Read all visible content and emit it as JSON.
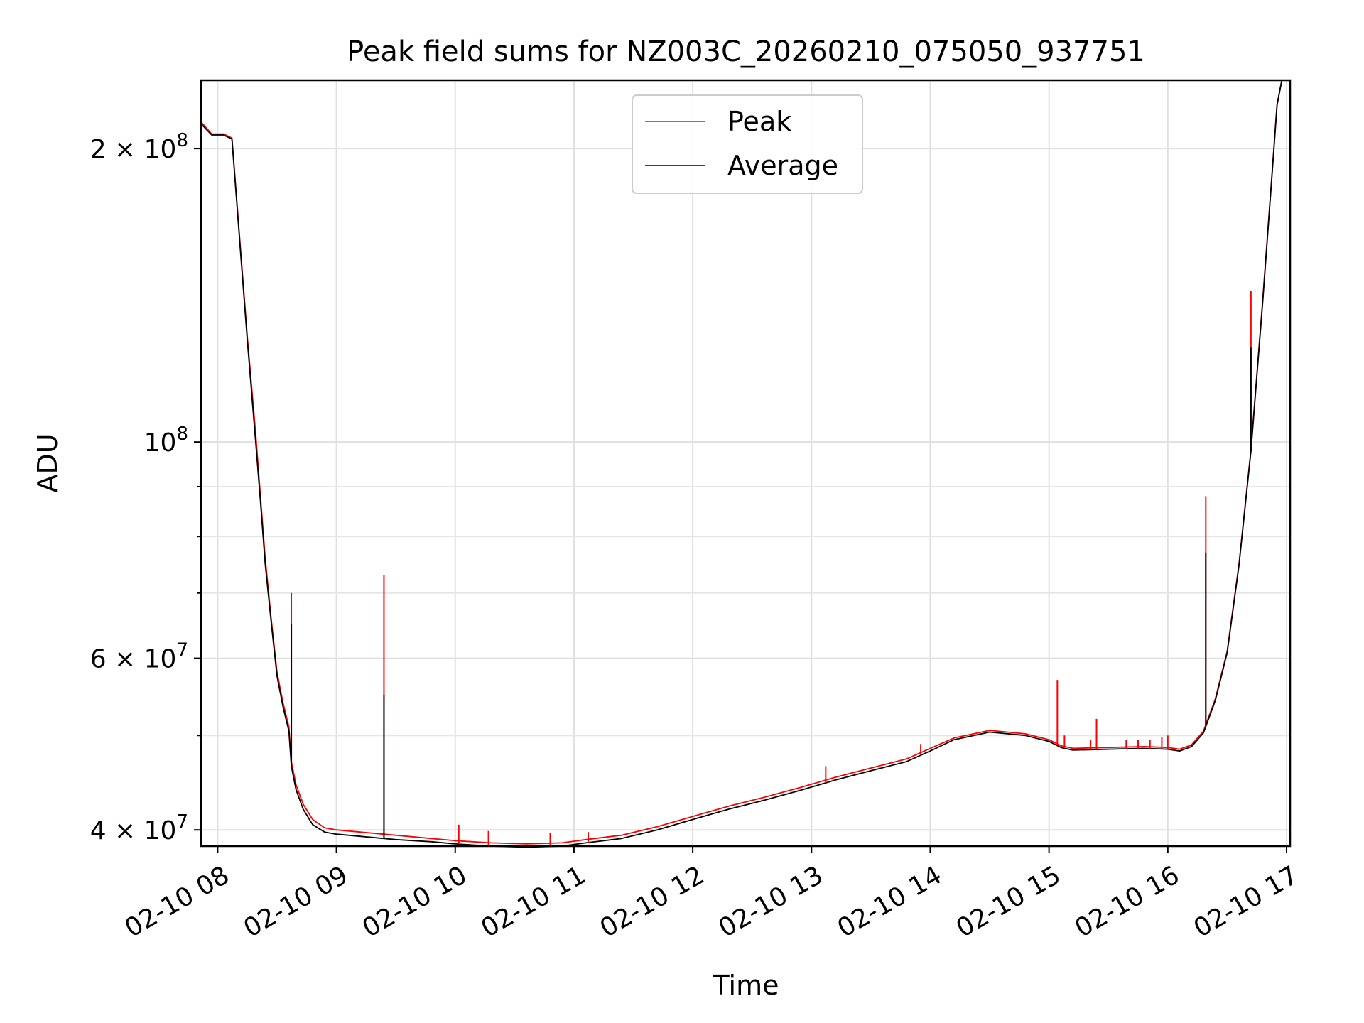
{
  "chart_data": {
    "type": "line",
    "title": "Peak field sums for NZ003C_20260210_075050_937751",
    "xlabel": "Time",
    "ylabel": "ADU",
    "yscale": "log",
    "grid": true,
    "legend_position": "top-center",
    "colors": {
      "peak": "#ff0000",
      "average": "#000000",
      "axes": "#000000",
      "grid": "#e0e0e0"
    },
    "x_unit": "hours since 02-10 00:00",
    "xlim": [
      7.86,
      17.03
    ],
    "ylim": [
      38500000,
      235000000
    ],
    "x_ticks": [
      {
        "value": 8,
        "label": "02-10 08"
      },
      {
        "value": 9,
        "label": "02-10 09"
      },
      {
        "value": 10,
        "label": "02-10 10"
      },
      {
        "value": 11,
        "label": "02-10 11"
      },
      {
        "value": 12,
        "label": "02-10 12"
      },
      {
        "value": 13,
        "label": "02-10 13"
      },
      {
        "value": 14,
        "label": "02-10 14"
      },
      {
        "value": 15,
        "label": "02-10 15"
      },
      {
        "value": 16,
        "label": "02-10 16"
      },
      {
        "value": 17,
        "label": "02-10 17"
      }
    ],
    "y_ticks_major": [
      {
        "value": 40000000,
        "base": "4 × 10",
        "exp": "7"
      },
      {
        "value": 60000000,
        "base": "6 × 10",
        "exp": "7"
      },
      {
        "value": 100000000,
        "base": "10",
        "exp": "8"
      },
      {
        "value": 200000000,
        "base": "2 × 10",
        "exp": "8"
      }
    ],
    "y_ticks_minor": [
      50000000,
      70000000,
      80000000,
      90000000
    ],
    "series": [
      {
        "name": "Peak",
        "color": "#ff0000",
        "x": [
          7.86,
          7.95,
          8.05,
          8.12,
          8.18,
          8.25,
          8.32,
          8.36,
          8.4,
          8.45,
          8.5,
          8.55,
          8.6,
          8.62,
          8.66,
          8.72,
          8.8,
          8.9,
          9.0,
          9.2,
          9.5,
          9.8,
          10.0,
          10.3,
          10.6,
          10.9,
          11.1,
          11.4,
          11.7,
          12.0,
          12.3,
          12.6,
          12.9,
          13.2,
          13.5,
          13.8,
          14.0,
          14.2,
          14.5,
          14.8,
          15.0,
          15.1,
          15.2,
          15.5,
          15.8,
          16.0,
          16.1,
          16.2,
          16.3,
          16.4,
          16.5,
          16.6,
          16.7,
          16.8,
          16.88,
          16.92,
          16.96,
          17.03
        ],
        "y": [
          213000000,
          207000000,
          207000000,
          205000000,
          165000000,
          128000000,
          102000000,
          88000000,
          76000000,
          66000000,
          58000000,
          54000000,
          51000000,
          47000000,
          44500000,
          42500000,
          41000000,
          40200000,
          40000000,
          39800000,
          39500000,
          39200000,
          39000000,
          38800000,
          38700000,
          38800000,
          39100000,
          39500000,
          40300000,
          41300000,
          42300000,
          43200000,
          44200000,
          45300000,
          46300000,
          47300000,
          48500000,
          49700000,
          50600000,
          50200000,
          49500000,
          48800000,
          48500000,
          48600000,
          48700000,
          48600000,
          48400000,
          48900000,
          50500000,
          54500000,
          61000000,
          75000000,
          98000000,
          140000000,
          190000000,
          222000000,
          235000000,
          235000000
        ]
      },
      {
        "name": "Average",
        "color": "#000000",
        "x": [
          7.86,
          7.95,
          8.05,
          8.12,
          8.18,
          8.25,
          8.32,
          8.36,
          8.4,
          8.45,
          8.5,
          8.55,
          8.6,
          8.62,
          8.66,
          8.72,
          8.8,
          8.9,
          9.0,
          9.2,
          9.5,
          9.8,
          10.0,
          10.3,
          10.6,
          10.9,
          11.1,
          11.4,
          11.7,
          12.0,
          12.3,
          12.6,
          12.9,
          13.2,
          13.5,
          13.8,
          14.0,
          14.2,
          14.5,
          14.8,
          15.0,
          15.1,
          15.2,
          15.5,
          15.8,
          16.0,
          16.1,
          16.2,
          16.3,
          16.4,
          16.5,
          16.6,
          16.7,
          16.8,
          16.88,
          16.92,
          16.96,
          17.03
        ],
        "y": [
          212000000,
          206500000,
          206500000,
          204500000,
          164000000,
          127000000,
          100000000,
          87000000,
          75000000,
          65500000,
          57500000,
          53500000,
          50500000,
          46500000,
          44000000,
          42000000,
          40500000,
          39800000,
          39600000,
          39400000,
          39100000,
          38900000,
          38700000,
          38500000,
          38400000,
          38500000,
          38800000,
          39200000,
          40000000,
          41000000,
          42000000,
          42900000,
          43900000,
          45000000,
          46000000,
          47000000,
          48200000,
          49500000,
          50400000,
          50000000,
          49300000,
          48600000,
          48300000,
          48400000,
          48500000,
          48400000,
          48200000,
          48700000,
          50300000,
          54300000,
          60800000,
          74800000,
          97800000,
          139500000,
          189500000,
          221500000,
          235000000,
          235000000
        ]
      }
    ],
    "peak_spikes": [
      {
        "x": 8.62,
        "y": 70000000
      },
      {
        "x": 9.4,
        "y": 73000000
      },
      {
        "x": 10.03,
        "y": 40500000
      },
      {
        "x": 10.28,
        "y": 39900000
      },
      {
        "x": 10.8,
        "y": 39700000
      },
      {
        "x": 11.12,
        "y": 39800000
      },
      {
        "x": 13.12,
        "y": 46500000
      },
      {
        "x": 13.92,
        "y": 49000000
      },
      {
        "x": 15.07,
        "y": 57000000
      },
      {
        "x": 15.13,
        "y": 50000000
      },
      {
        "x": 15.35,
        "y": 49500000
      },
      {
        "x": 15.4,
        "y": 52000000
      },
      {
        "x": 15.65,
        "y": 49500000
      },
      {
        "x": 15.75,
        "y": 49500000
      },
      {
        "x": 15.85,
        "y": 49500000
      },
      {
        "x": 15.95,
        "y": 49800000
      },
      {
        "x": 16.0,
        "y": 50000000
      },
      {
        "x": 16.32,
        "y": 88000000
      },
      {
        "x": 16.7,
        "y": 143000000
      }
    ],
    "average_spikes": [
      {
        "x": 8.62,
        "y": 65000000
      },
      {
        "x": 9.4,
        "y": 55000000
      },
      {
        "x": 16.32,
        "y": 77000000
      },
      {
        "x": 16.7,
        "y": 125000000
      }
    ]
  }
}
